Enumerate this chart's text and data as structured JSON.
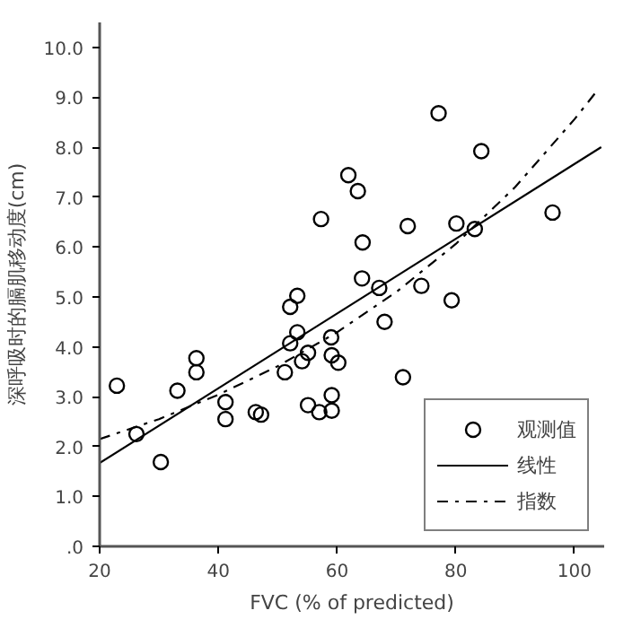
{
  "chart_data": {
    "type": "scatter",
    "xlabel": "FVC (% of predicted)",
    "ylabel": "深呼吸时的膈肌移动度(cm)",
    "xlim": [
      20,
      105
    ],
    "ylim": [
      0,
      10.5
    ],
    "xticks": [
      20,
      40,
      60,
      80,
      100
    ],
    "yticks": [
      {
        "value": 0,
        "label": ".0"
      },
      {
        "value": 1,
        "label": "1.0"
      },
      {
        "value": 2,
        "label": "2.0"
      },
      {
        "value": 3,
        "label": "3.0"
      },
      {
        "value": 4,
        "label": "4.0"
      },
      {
        "value": 5,
        "label": "5.0"
      },
      {
        "value": 6,
        "label": "6.0"
      },
      {
        "value": 7,
        "label": "7.0"
      },
      {
        "value": 8,
        "label": "8.0"
      },
      {
        "value": 9,
        "label": "9.0"
      },
      {
        "value": 10,
        "label": "10.0"
      }
    ],
    "grid": false,
    "legend": "bottom right",
    "series": [
      {
        "name": "观测值",
        "marker": "circle",
        "color": "#000000",
        "x": [
          22.9,
          26.2,
          30.3,
          33.1,
          36.3,
          36.3,
          41.2,
          41.2,
          46.3,
          47.2,
          51.2,
          52.1,
          53.3,
          52.1,
          53.3,
          54.1,
          55.1,
          55.1,
          57.0,
          59.0,
          59.1,
          59.1,
          59.1,
          60.2,
          64.2,
          67.1,
          68.0,
          71.1,
          74.2,
          79.3,
          57.3,
          61.9,
          63.5,
          64.3,
          71.9,
          77.1,
          80.1,
          83.2,
          84.3,
          96.3
        ],
        "values": [
          3.22,
          2.25,
          1.69,
          3.12,
          3.77,
          3.49,
          2.89,
          2.55,
          2.69,
          2.64,
          3.49,
          4.8,
          5.02,
          4.07,
          4.29,
          3.71,
          3.88,
          2.83,
          2.69,
          4.19,
          3.83,
          3.03,
          2.72,
          3.68,
          5.37,
          5.18,
          4.5,
          3.39,
          5.22,
          4.93,
          6.56,
          7.44,
          7.12,
          6.09,
          6.42,
          8.68,
          6.47,
          6.36,
          7.92,
          6.69
        ]
      },
      {
        "name": "线性",
        "type": "line",
        "line_style": "solid",
        "color": "#000000",
        "x": [
          20,
          104.5
        ],
        "values": [
          1.67,
          8.0
        ]
      },
      {
        "name": "指数",
        "type": "line",
        "line_style": "dashdot",
        "color": "#000000",
        "x": [
          20,
          30,
          40,
          50,
          60,
          70,
          80,
          90,
          100,
          104
        ],
        "values": [
          2.15,
          2.55,
          3.04,
          3.61,
          4.29,
          5.1,
          6.06,
          7.2,
          8.56,
          9.16
        ]
      }
    ]
  }
}
